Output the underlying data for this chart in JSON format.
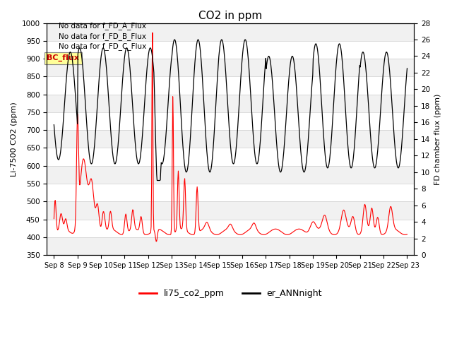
{
  "title": "CO2 in ppm",
  "ylabel_left": "Li-7500 CO2 (ppm)",
  "ylabel_right": "FD chamber flux (ppm)",
  "ylim_left": [
    350,
    1000
  ],
  "ylim_right": [
    0,
    28
  ],
  "yticks_left": [
    350,
    400,
    450,
    500,
    550,
    600,
    650,
    700,
    750,
    800,
    850,
    900,
    950,
    1000
  ],
  "yticks_right": [
    0,
    2,
    4,
    6,
    8,
    10,
    12,
    14,
    16,
    18,
    20,
    22,
    24,
    26,
    28
  ],
  "xticklabels": [
    "Sep 8",
    "Sep 9",
    "Sep 10",
    "Sep 11",
    "Sep 12",
    "Sep 13",
    "Sep 14",
    "Sep 15",
    "Sep 16",
    "Sep 17",
    "Sep 18",
    "Sep 19",
    "Sep 20",
    "Sep 21",
    "Sep 22",
    "Sep 23"
  ],
  "text_lines": [
    "No data for f_FD_A_Flux",
    "No data for f_FD_B_Flux",
    "No data for f_FD_C_Flux"
  ],
  "legend_label_red": "li75_co2_ppm",
  "legend_label_black": "er_ANNnight",
  "bc_flux_label": "BC_flux",
  "line_color_red": "#ff0000",
  "line_color_black": "#000000",
  "background_color": "#ffffff",
  "grid_color": "#cccccc",
  "annotation_box_color": "#ffff99",
  "annotation_text_color": "#cc0000"
}
